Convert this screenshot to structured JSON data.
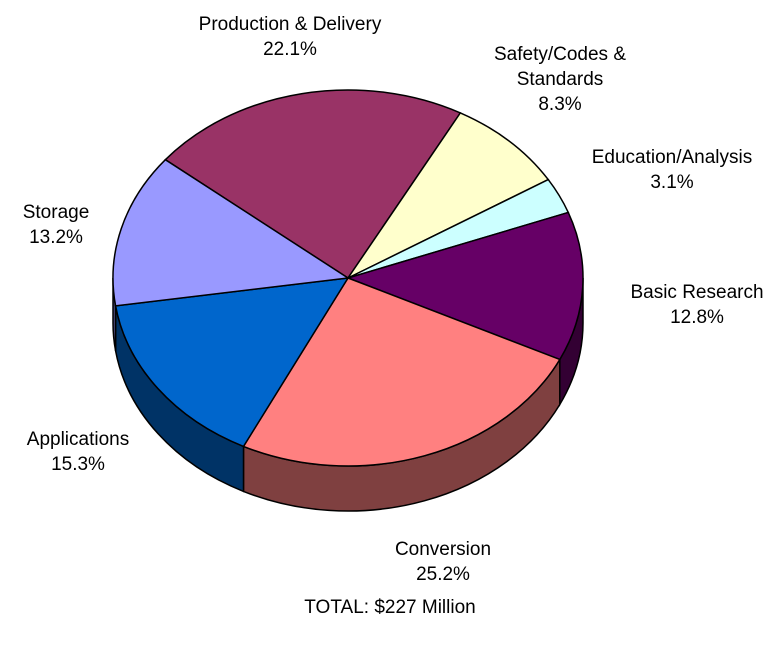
{
  "chart_data": {
    "type": "pie",
    "categories": [
      "Production & Delivery",
      "Safety/Codes & Standards",
      "Education/Analysis",
      "Basic Research",
      "Conversion",
      "Applications",
      "Storage"
    ],
    "values": [
      22.1,
      8.3,
      3.1,
      12.8,
      25.2,
      15.3,
      13.2
    ],
    "value_labels": [
      "22.1%",
      "8.3%",
      "3.1%",
      "12.8%",
      "25.2%",
      "15.3%",
      "13.2%"
    ],
    "colors": [
      "#993366",
      "#ffffcc",
      "#ccffff",
      "#660066",
      "#ff8080",
      "#0066cc",
      "#9999ff"
    ],
    "footnote": "TOTAL:  $227 Million"
  }
}
